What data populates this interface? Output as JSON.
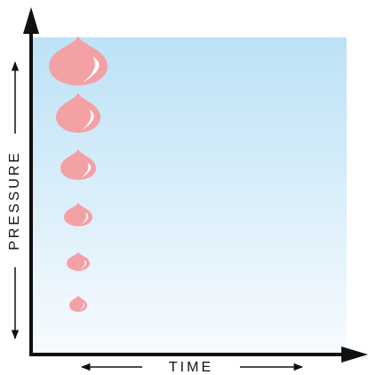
{
  "axes": {
    "y_label": "PRESSURE",
    "x_label": "TIME"
  }
}
